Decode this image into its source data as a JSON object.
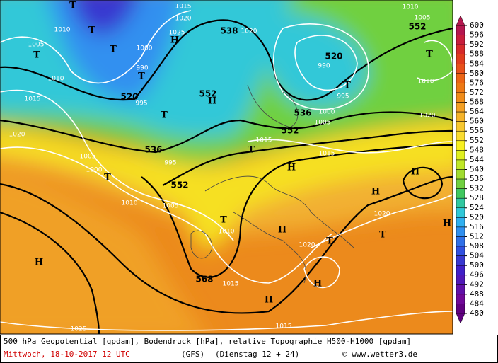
{
  "map": {
    "caption": "500 hPa Geopotential [gpdam], Bodendruck [hPa], relative Topographie H500-H1000 [gpdam]",
    "date": "Mittwoch, 18-10-2017  12 UTC",
    "model": "(GFS)",
    "run": "(Dienstag 12 + 24)",
    "credit": "© www.wetter3.de",
    "systems": [
      "T",
      "T",
      "T",
      "T",
      "T",
      "T",
      "T",
      "T",
      "T",
      "T",
      "T",
      "T",
      "T",
      "H",
      "H",
      "H",
      "H",
      "H",
      "H",
      "H",
      "H",
      "H",
      "H"
    ],
    "geopotential": [
      "538",
      "552",
      "520",
      "520",
      "552",
      "536",
      "552",
      "536",
      "552",
      "568"
    ],
    "isobars": [
      "1015",
      "1020",
      "1025",
      "1010",
      "1005",
      "1010",
      "1015",
      "1020",
      "1005",
      "1000",
      "995",
      "1010",
      "1005",
      "1010",
      "1015",
      "1015",
      "1005",
      "1000",
      "995",
      "990",
      "1020",
      "1010",
      "1005",
      "1010",
      "1020",
      "1020",
      "1015",
      "1015",
      "1025",
      "995",
      "990",
      "1000",
      "1020"
    ]
  },
  "colorbar": {
    "ticks": [
      600,
      596,
      592,
      588,
      584,
      580,
      576,
      572,
      568,
      564,
      560,
      556,
      552,
      548,
      544,
      540,
      536,
      532,
      528,
      524,
      520,
      516,
      512,
      508,
      504,
      500,
      496,
      492,
      488,
      484,
      480
    ],
    "colors": [
      "#b5174f",
      "#c81e3c",
      "#d62a2a",
      "#e03c1e",
      "#e8501a",
      "#ec6414",
      "#ee7814",
      "#f08c1a",
      "#f4a024",
      "#f6b42a",
      "#f8c830",
      "#fadc30",
      "#f8f020",
      "#e0f020",
      "#c0e828",
      "#a0dc30",
      "#70d040",
      "#40c860",
      "#30c8a0",
      "#30c8d8",
      "#30b0f0",
      "#3090f0",
      "#3070e8",
      "#3050e0",
      "#3838d0",
      "#4020c8",
      "#5018b8",
      "#6010a8",
      "#700898",
      "#600080"
    ]
  }
}
